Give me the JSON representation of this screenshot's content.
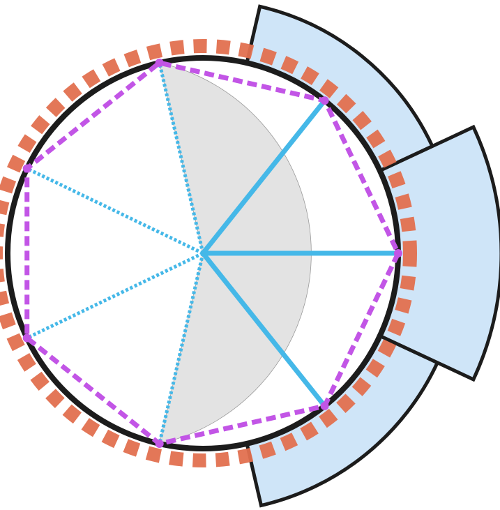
{
  "colors": {
    "circle": "#1c1c1c",
    "sector_fill": "#e3e3e3",
    "band_fill": "#cfe5f8",
    "band_stroke": "#1c1c1c",
    "dashed_ring": "#e2704f",
    "heptagon": "#c255e6",
    "spokes": "#45b8e8",
    "background": "#ffffff"
  },
  "diagram": {
    "polygon_sides": 7,
    "highlighted_sector_vertices": 3,
    "outer_bands": 3
  }
}
